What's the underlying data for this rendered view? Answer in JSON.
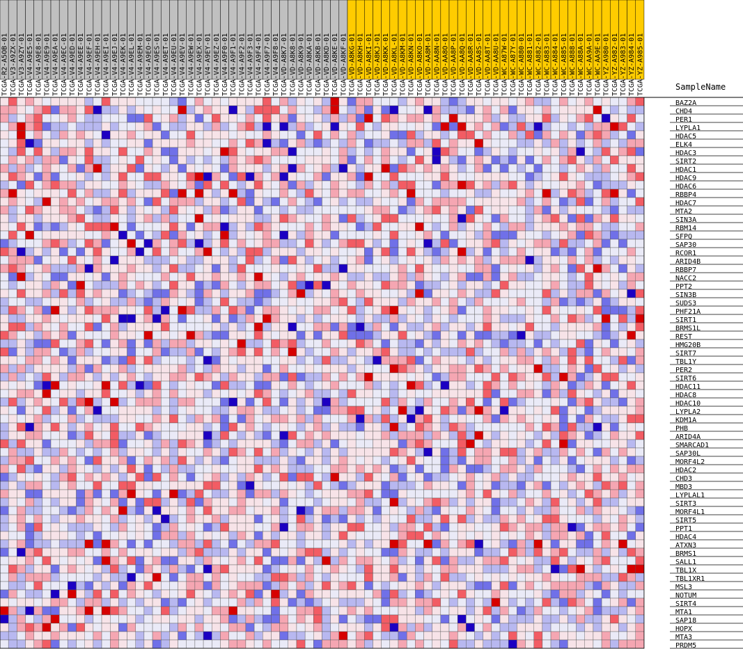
{
  "chart_data": {
    "type": "heatmap",
    "header_label": "SampleName",
    "columns": [
      {
        "name": "TCGA-R2-A5OB-01",
        "group": "a"
      },
      {
        "name": "TCGA-V3-A9ZX-01",
        "group": "a"
      },
      {
        "name": "TCGA-V3-A9ZY-01",
        "group": "a"
      },
      {
        "name": "TCGA-V4-A9E5-01",
        "group": "a"
      },
      {
        "name": "TCGA-V4-A9E8-01",
        "group": "a"
      },
      {
        "name": "TCGA-V4-A9E9-01",
        "group": "a"
      },
      {
        "name": "TCGA-V4-A9EA-01",
        "group": "a"
      },
      {
        "name": "TCGA-V4-A9EC-01",
        "group": "a"
      },
      {
        "name": "TCGA-V4-A9ED-01",
        "group": "a"
      },
      {
        "name": "TCGA-V4-A9EE-01",
        "group": "a"
      },
      {
        "name": "TCGA-V4-A9EF-01",
        "group": "a"
      },
      {
        "name": "TCGA-V4-A9EH-01",
        "group": "a"
      },
      {
        "name": "TCGA-V4-A9EI-01",
        "group": "a"
      },
      {
        "name": "TCGA-V4-A9EJ-01",
        "group": "a"
      },
      {
        "name": "TCGA-V4-A9EK-01",
        "group": "a"
      },
      {
        "name": "TCGA-V4-A9EL-01",
        "group": "a"
      },
      {
        "name": "TCGA-V4-A9EM-01",
        "group": "a"
      },
      {
        "name": "TCGA-V4-A9EO-01",
        "group": "a"
      },
      {
        "name": "TCGA-V4-A9ES-01",
        "group": "a"
      },
      {
        "name": "TCGA-V4-A9ET-01",
        "group": "a"
      },
      {
        "name": "TCGA-V4-A9EU-01",
        "group": "a"
      },
      {
        "name": "TCGA-V4-A9EV-01",
        "group": "a"
      },
      {
        "name": "TCGA-V4-A9EW-01",
        "group": "a"
      },
      {
        "name": "TCGA-V4-A9EX-01",
        "group": "a"
      },
      {
        "name": "TCGA-V4-A9EY-01",
        "group": "a"
      },
      {
        "name": "TCGA-V4-A9EZ-01",
        "group": "a"
      },
      {
        "name": "TCGA-V4-A9F0-01",
        "group": "a"
      },
      {
        "name": "TCGA-V4-A9F1-01",
        "group": "a"
      },
      {
        "name": "TCGA-V4-A9F2-01",
        "group": "a"
      },
      {
        "name": "TCGA-V4-A9F3-01",
        "group": "a"
      },
      {
        "name": "TCGA-V4-A9F4-01",
        "group": "a"
      },
      {
        "name": "TCGA-V4-A9F7-01",
        "group": "a"
      },
      {
        "name": "TCGA-V4-A9F8-01",
        "group": "a"
      },
      {
        "name": "TCGA-VD-A8K7-01",
        "group": "a"
      },
      {
        "name": "TCGA-VD-A8K8-01",
        "group": "a"
      },
      {
        "name": "TCGA-VD-A8K9-01",
        "group": "a"
      },
      {
        "name": "TCGA-VD-A8KA-01",
        "group": "a"
      },
      {
        "name": "TCGA-VD-A8KB-01",
        "group": "a"
      },
      {
        "name": "TCGA-VD-A8KD-01",
        "group": "a"
      },
      {
        "name": "TCGA-VD-A8KE-01",
        "group": "a"
      },
      {
        "name": "TCGA-VD-A8KF-01",
        "group": "a"
      },
      {
        "name": "TCGA-VD-A8KG-01",
        "group": "b"
      },
      {
        "name": "TCGA-VD-A8KH-01",
        "group": "b"
      },
      {
        "name": "TCGA-VD-A8KI-01",
        "group": "b"
      },
      {
        "name": "TCGA-VD-A8KJ-01",
        "group": "b"
      },
      {
        "name": "TCGA-VD-A8KK-01",
        "group": "b"
      },
      {
        "name": "TCGA-VD-A8KL-01",
        "group": "b"
      },
      {
        "name": "TCGA-VD-A8KM-01",
        "group": "b"
      },
      {
        "name": "TCGA-VD-A8KN-01",
        "group": "b"
      },
      {
        "name": "TCGA-VD-A8KO-01",
        "group": "b"
      },
      {
        "name": "TCGA-VD-AA8M-01",
        "group": "b"
      },
      {
        "name": "TCGA-VD-AA8N-01",
        "group": "b"
      },
      {
        "name": "TCGA-VD-AA8O-01",
        "group": "b"
      },
      {
        "name": "TCGA-VD-AA8P-01",
        "group": "b"
      },
      {
        "name": "TCGA-VD-AA8Q-01",
        "group": "b"
      },
      {
        "name": "TCGA-VD-AA8R-01",
        "group": "b"
      },
      {
        "name": "TCGA-VD-AA8S-01",
        "group": "b"
      },
      {
        "name": "TCGA-VD-AA8T-01",
        "group": "b"
      },
      {
        "name": "TCGA-VD-AA8U-01",
        "group": "b"
      },
      {
        "name": "TCGA-WC-A87W-01",
        "group": "b"
      },
      {
        "name": "TCGA-WC-A87Y-01",
        "group": "b"
      },
      {
        "name": "TCGA-WC-A880-01",
        "group": "b"
      },
      {
        "name": "TCGA-WC-A881-01",
        "group": "b"
      },
      {
        "name": "TCGA-WC-A882-01",
        "group": "b"
      },
      {
        "name": "TCGA-WC-A883-01",
        "group": "b"
      },
      {
        "name": "TCGA-WC-A884-01",
        "group": "b"
      },
      {
        "name": "TCGA-WC-A885-01",
        "group": "b"
      },
      {
        "name": "TCGA-WC-A888-01",
        "group": "b"
      },
      {
        "name": "TCGA-WC-A88A-01",
        "group": "b"
      },
      {
        "name": "TCGA-WC-AA9A-01",
        "group": "b"
      },
      {
        "name": "TCGA-WC-AA9E-01",
        "group": "b"
      },
      {
        "name": "TCGA-YZ-A980-01",
        "group": "b"
      },
      {
        "name": "TCGA-YZ-A982-01",
        "group": "b"
      },
      {
        "name": "TCGA-YZ-A983-01",
        "group": "b"
      },
      {
        "name": "TCGA-YZ-A984-01",
        "group": "b"
      },
      {
        "name": "TCGA-YZ-A985-01",
        "group": "b"
      }
    ],
    "rows": [
      "BAZ2A",
      "CHD4",
      "PER1",
      "LYPLA1",
      "HDAC5",
      "ELK4",
      "HDAC3",
      "SIRT2",
      "HDAC1",
      "HDAC9",
      "HDAC6",
      "RBBP4",
      "HDAC7",
      "MTA2",
      "SIN3A",
      "RBM14",
      "SFPQ",
      "SAP30",
      "RCOR1",
      "ARID4B",
      "RBBP7",
      "NACC2",
      "PPT2",
      "SIN3B",
      "SUDS3",
      "PHF21A",
      "SIRT1",
      "BRMS1L",
      "REST",
      "HMG20B",
      "SIRT7",
      "TBL1Y",
      "PER2",
      "SIRT6",
      "HDAC11",
      "HDAC8",
      "HDAC10",
      "LYPLA2",
      "KDM1A",
      "PHB",
      "ARID4A",
      "SMARCAD1",
      "SAP30L",
      "MORF4L2",
      "HDAC2",
      "CHD3",
      "MBD3",
      "LYPLAL1",
      "SIRT3",
      "MORF4L1",
      "SIRT5",
      "PPT1",
      "HDAC4",
      "ATXN3",
      "BRMS1",
      "SALL1",
      "TBL1X",
      "TBL1XR1",
      "MSL3",
      "NOTUM",
      "SIRT4",
      "MTA1",
      "SAP18",
      "HOPX",
      "MTA3",
      "PRDM5"
    ],
    "group_colors": {
      "a": "#c0c0c0",
      "b": "#ffcc00"
    },
    "value_range": [
      -3,
      3
    ],
    "colormap": [
      "#1c00c2",
      "#7070e8",
      "#b8b8f0",
      "#eaeaf7",
      "#f7e3e8",
      "#f5a6b2",
      "#f25c64",
      "#d60000"
    ],
    "values": []
  }
}
